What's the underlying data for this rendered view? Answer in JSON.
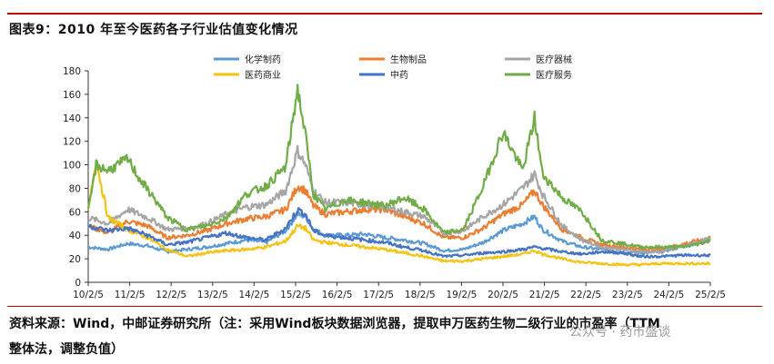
{
  "title": "图表9：2010 年至今医药各子行业估值变化情况",
  "source_line1": "资料来源：Wind，中邮证券研究所（注：采用Wind板块数据浏览器，提取申万医药生物二级行业的市盈率（TTM",
  "source_line2": "整体法，调整负值）",
  "watermark": "公众号 · 药市盛谈",
  "chart_data": {
    "type": "line",
    "x_tick_labels": [
      "10/2/5",
      "11/2/5",
      "12/2/5",
      "13/2/5",
      "14/2/5",
      "15/2/5",
      "16/2/5",
      "17/2/5",
      "18/2/5",
      "19/2/5",
      "20/2/5",
      "21/2/5",
      "22/2/5",
      "23/2/5",
      "24/2/5",
      "25/2/5"
    ],
    "y_ticks": [
      0,
      20,
      40,
      60,
      80,
      100,
      120,
      140,
      160,
      180
    ],
    "ylim": [
      0,
      180
    ],
    "xlim": [
      2010.0,
      2025.75
    ],
    "grid": false,
    "legend_position": "top",
    "series": [
      {
        "name": "化学制药",
        "color": "#5b9bd5",
        "x": [
          2010.0,
          2010.5,
          2011.0,
          2011.5,
          2012.0,
          2012.5,
          2013.0,
          2013.5,
          2014.0,
          2014.5,
          2015.0,
          2015.3,
          2015.5,
          2015.7,
          2016.0,
          2016.5,
          2017.0,
          2017.5,
          2018.0,
          2018.5,
          2019.0,
          2019.5,
          2020.0,
          2020.5,
          2021.0,
          2021.3,
          2021.5,
          2022.0,
          2022.5,
          2023.0,
          2023.5,
          2024.0,
          2024.5,
          2025.0,
          2025.5,
          2025.75
        ],
        "y": [
          30,
          28,
          33,
          31,
          26,
          28,
          30,
          33,
          36,
          34,
          44,
          58,
          56,
          45,
          40,
          40,
          41,
          38,
          36,
          33,
          27,
          28,
          34,
          44,
          50,
          56,
          45,
          35,
          30,
          28,
          26,
          25,
          26,
          30,
          34,
          36
        ]
      },
      {
        "name": "生物制品",
        "color": "#ed7d31",
        "x": [
          2010.0,
          2010.5,
          2011.0,
          2011.5,
          2012.0,
          2012.5,
          2013.0,
          2013.5,
          2014.0,
          2014.5,
          2015.0,
          2015.3,
          2015.5,
          2015.7,
          2016.0,
          2016.5,
          2017.0,
          2017.5,
          2018.0,
          2018.5,
          2019.0,
          2019.5,
          2020.0,
          2020.5,
          2021.0,
          2021.3,
          2021.5,
          2022.0,
          2022.5,
          2023.0,
          2023.5,
          2024.0,
          2024.5,
          2025.0,
          2025.5,
          2025.75
        ],
        "y": [
          48,
          42,
          52,
          48,
          38,
          40,
          44,
          50,
          54,
          56,
          62,
          82,
          78,
          65,
          58,
          60,
          62,
          62,
          56,
          50,
          38,
          38,
          46,
          58,
          66,
          78,
          66,
          45,
          38,
          32,
          30,
          28,
          28,
          32,
          36,
          38
        ]
      },
      {
        "name": "医疗器械",
        "color": "#a5a5a5",
        "x": [
          2010.0,
          2010.5,
          2011.0,
          2011.5,
          2012.0,
          2012.5,
          2013.0,
          2013.5,
          2014.0,
          2014.5,
          2015.0,
          2015.3,
          2015.5,
          2015.7,
          2016.0,
          2016.5,
          2017.0,
          2017.5,
          2018.0,
          2018.5,
          2019.0,
          2019.5,
          2020.0,
          2020.5,
          2021.0,
          2021.3,
          2021.5,
          2022.0,
          2022.5,
          2023.0,
          2023.5,
          2024.0,
          2024.5,
          2025.0,
          2025.5,
          2025.75
        ],
        "y": [
          55,
          50,
          62,
          55,
          45,
          46,
          50,
          58,
          64,
          66,
          78,
          112,
          100,
          78,
          68,
          68,
          66,
          64,
          60,
          56,
          42,
          44,
          56,
          66,
          80,
          92,
          75,
          48,
          36,
          30,
          28,
          26,
          26,
          30,
          35,
          37
        ]
      },
      {
        "name": "医药商业",
        "color": "#f5c211",
        "x": [
          2010.0,
          2010.2,
          2010.5,
          2011.0,
          2011.5,
          2012.0,
          2012.5,
          2013.0,
          2013.5,
          2014.0,
          2014.5,
          2015.0,
          2015.3,
          2015.5,
          2015.7,
          2016.0,
          2016.5,
          2017.0,
          2017.5,
          2018.0,
          2018.5,
          2019.0,
          2019.5,
          2020.0,
          2020.5,
          2021.0,
          2021.3,
          2021.5,
          2022.0,
          2022.5,
          2023.0,
          2023.5,
          2024.0,
          2024.5,
          2025.0,
          2025.5,
          2025.75
        ],
        "y": [
          60,
          104,
          55,
          45,
          38,
          28,
          22,
          25,
          27,
          28,
          30,
          35,
          48,
          46,
          36,
          34,
          32,
          30,
          28,
          25,
          22,
          18,
          18,
          20,
          22,
          24,
          27,
          24,
          20,
          17,
          16,
          15,
          15,
          16,
          16,
          16,
          16
        ]
      },
      {
        "name": "中药",
        "color": "#4472c4",
        "x": [
          2010.0,
          2010.5,
          2011.0,
          2011.5,
          2012.0,
          2012.5,
          2013.0,
          2013.5,
          2014.0,
          2014.5,
          2015.0,
          2015.3,
          2015.5,
          2015.7,
          2016.0,
          2016.5,
          2017.0,
          2017.5,
          2018.0,
          2018.5,
          2019.0,
          2019.5,
          2020.0,
          2020.5,
          2021.0,
          2021.3,
          2021.5,
          2022.0,
          2022.5,
          2023.0,
          2023.5,
          2024.0,
          2024.5,
          2025.0,
          2025.5,
          2025.75
        ],
        "y": [
          48,
          44,
          46,
          40,
          32,
          34,
          38,
          42,
          38,
          36,
          46,
          62,
          58,
          44,
          40,
          38,
          36,
          34,
          30,
          27,
          22,
          23,
          25,
          26,
          28,
          30,
          29,
          26,
          24,
          26,
          25,
          22,
          22,
          23,
          23,
          23
        ]
      },
      {
        "name": "医疗服务",
        "color": "#70ad47",
        "x": [
          2010.0,
          2010.2,
          2010.5,
          2011.0,
          2011.3,
          2011.7,
          2012.0,
          2012.5,
          2013.0,
          2013.5,
          2014.0,
          2014.5,
          2015.0,
          2015.3,
          2015.5,
          2015.7,
          2016.0,
          2016.5,
          2017.0,
          2017.5,
          2018.0,
          2018.5,
          2019.0,
          2019.5,
          2020.0,
          2020.5,
          2021.0,
          2021.3,
          2021.5,
          2022.0,
          2022.5,
          2023.0,
          2023.5,
          2024.0,
          2024.5,
          2025.0,
          2025.5,
          2025.75
        ],
        "y": [
          60,
          100,
          95,
          105,
          88,
          70,
          55,
          45,
          48,
          55,
          75,
          82,
          98,
          165,
          125,
          75,
          62,
          70,
          68,
          65,
          72,
          62,
          42,
          45,
          82,
          128,
          95,
          140,
          92,
          72,
          60,
          36,
          33,
          30,
          30,
          30,
          33,
          36
        ]
      }
    ]
  }
}
